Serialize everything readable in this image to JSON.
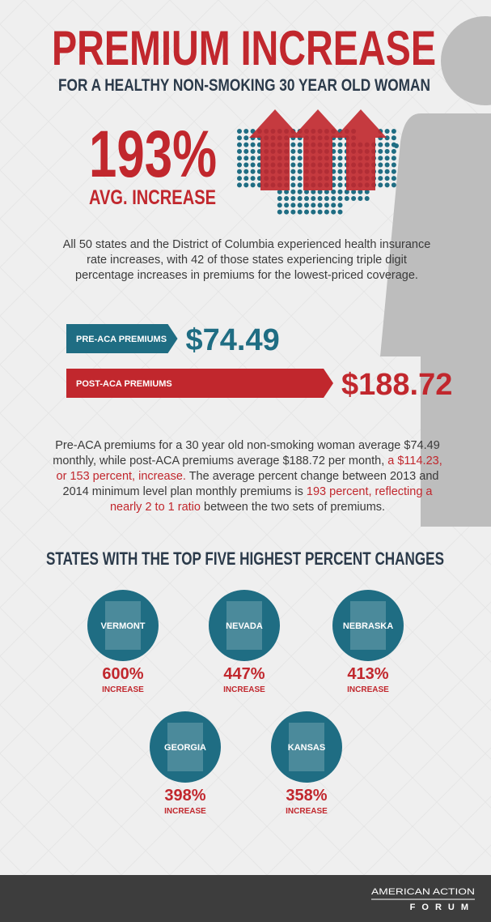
{
  "header": {
    "title": "PREMIUM INCREASE",
    "subtitle": "FOR A HEALTHY NON-SMOKING 30 YEAR OLD WOMAN"
  },
  "highlight": {
    "value": "193%",
    "label": "AVG. INCREASE"
  },
  "paragraphs": [
    {
      "segments": [
        {
          "text": "All 50 states and the District of Columbia experienced health insurance rate increases, with 42 of those states experiencing triple digit percentage increases in premiums for the lowest-priced coverage.",
          "color": "#3a3a3a"
        }
      ]
    },
    {
      "segments": [
        {
          "text": "Pre-ACA premiums for a 30 year old non-smoking woman average $74.49 monthly, while post-ACA premiums average $188.72 per month, ",
          "color": "#3a3a3a"
        },
        {
          "text": "a $114.23, or 153 percent, increase.",
          "color": "#c1272d"
        },
        {
          "text": " The average percent change between 2013 and 2014 minimum level plan monthly premiums is ",
          "color": "#3a3a3a"
        },
        {
          "text": "193 percent, reflecting a nearly 2 to 1 ratio",
          "color": "#c1272d"
        },
        {
          "text": " between the two sets of premiums.",
          "color": "#3a3a3a"
        }
      ]
    }
  ],
  "premiums": [
    {
      "label": "PRE-ACA PREMIUMS",
      "value": 74.49,
      "value_label": "$74.49",
      "color": "#1f6d83"
    },
    {
      "label": "POST-ACA PREMIUMS",
      "value": 188.72,
      "value_label": "$188.72",
      "color": "#c1272d"
    }
  ],
  "states_heading": "STATES WITH THE TOP FIVE HIGHEST PERCENT CHANGES",
  "states": [
    {
      "name": "VERMONT",
      "value": 600,
      "value_label": "600%",
      "note": "INCREASE"
    },
    {
      "name": "NEVADA",
      "value": 447,
      "value_label": "447%",
      "note": "INCREASE"
    },
    {
      "name": "NEBRASKA",
      "value": 413,
      "value_label": "413%",
      "note": "INCREASE"
    },
    {
      "name": "GEORGIA",
      "value": 398,
      "value_label": "398%",
      "note": "INCREASE"
    },
    {
      "name": "KANSAS",
      "value": 358,
      "value_label": "358%",
      "note": "INCREASE"
    }
  ],
  "footer": {
    "logo_top": "AMERICAN ACTION",
    "logo_bottom": "FORUM"
  }
}
